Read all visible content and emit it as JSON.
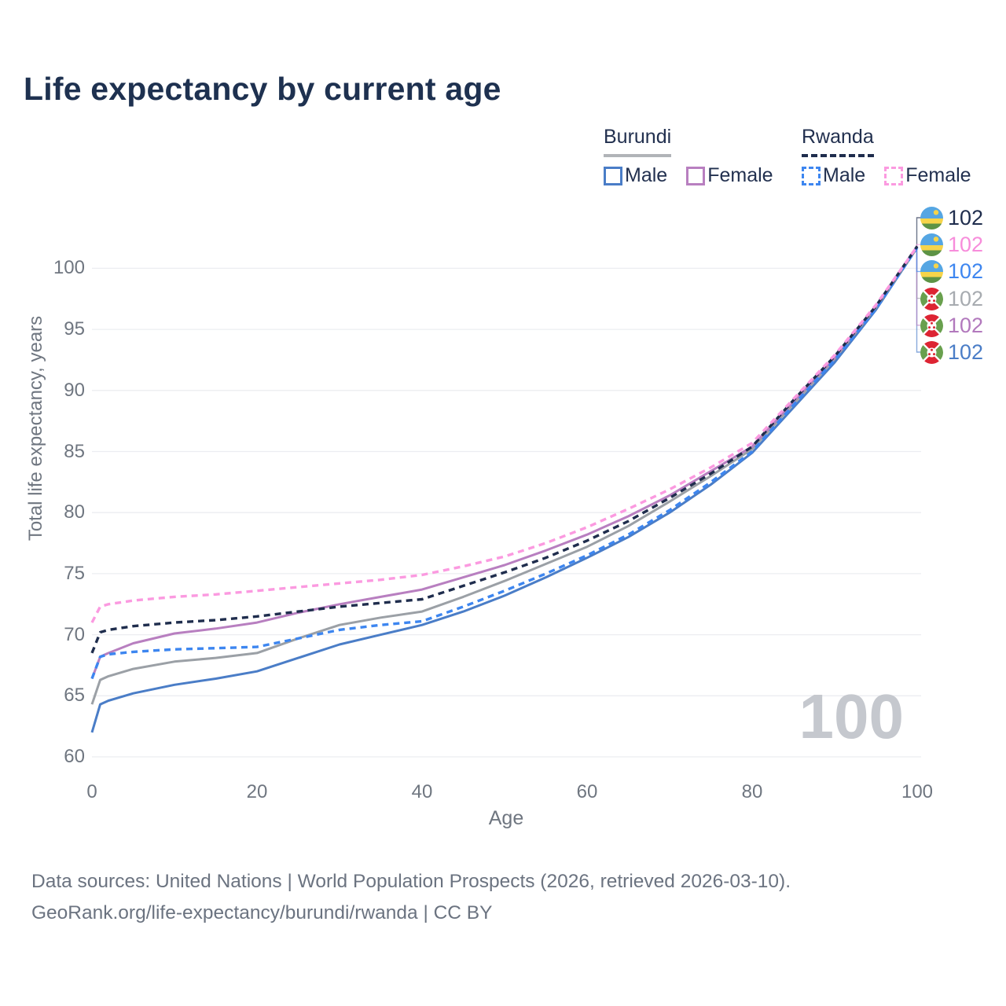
{
  "title": "Life expectancy by current age",
  "legend": {
    "groups": [
      {
        "label": "Burundi",
        "line_style": "solid",
        "underline_color": "#b1b4b8",
        "items": [
          {
            "label": "Male",
            "color": "#4a7dc7",
            "dashed": false
          },
          {
            "label": "Female",
            "color": "#b87fc0",
            "dashed": false
          }
        ]
      },
      {
        "label": "Rwanda",
        "line_style": "dashed",
        "underline_color": "#1f2d4d",
        "items": [
          {
            "label": "Male",
            "color": "#3d86f0",
            "dashed": true
          },
          {
            "label": "Female",
            "color": "#fb9ae0",
            "dashed": true
          }
        ]
      }
    ]
  },
  "chart_data": {
    "type": "line",
    "title": "Life expectancy by current age",
    "xlabel": "Age",
    "ylabel": "Total life expectancy, years",
    "xlim": [
      0,
      100
    ],
    "ylim": [
      60,
      102.5
    ],
    "x_ticks": [
      0,
      20,
      40,
      60,
      80,
      100
    ],
    "y_ticks": [
      60,
      65,
      70,
      75,
      80,
      85,
      90,
      95,
      100
    ],
    "grid": "horizontal",
    "legend_position": "top-right",
    "watermark": "100",
    "x": [
      0,
      1,
      2,
      5,
      10,
      15,
      20,
      25,
      30,
      35,
      40,
      45,
      50,
      55,
      60,
      65,
      70,
      75,
      80,
      85,
      90,
      95,
      100
    ],
    "series": [
      {
        "id": "burundi-male",
        "country": "Burundi",
        "sex": "male",
        "color": "#4a7dc7",
        "dashed": false,
        "flag": "burundi",
        "end_label": "102",
        "end_label_color": "#4a7dc7",
        "label_row": 5,
        "values": [
          62.0,
          64.3,
          64.6,
          65.2,
          65.9,
          66.4,
          67.0,
          68.1,
          69.2,
          70.0,
          70.8,
          71.9,
          73.2,
          74.7,
          76.3,
          78.0,
          80.0,
          82.3,
          84.9,
          88.6,
          92.3,
          96.6,
          101.7
        ]
      },
      {
        "id": "burundi-both-sexes",
        "country": "Burundi",
        "sex": "both",
        "color": "#9ba0a6",
        "dashed": false,
        "flag": "burundi",
        "end_label": "102",
        "end_label_color": "#a7abb0",
        "label_row": 3,
        "values": [
          64.3,
          66.3,
          66.6,
          67.2,
          67.8,
          68.1,
          68.5,
          69.7,
          70.8,
          71.4,
          71.9,
          73.1,
          74.4,
          75.8,
          77.2,
          78.9,
          80.9,
          83.0,
          85.2,
          88.9,
          92.6,
          96.8,
          101.7
        ]
      },
      {
        "id": "burundi-female",
        "country": "Burundi",
        "sex": "female",
        "color": "#b87fc0",
        "dashed": false,
        "flag": "burundi",
        "end_label": "102",
        "end_label_color": "#b279bd",
        "label_row": 4,
        "values": [
          66.4,
          68.2,
          68.5,
          69.3,
          70.1,
          70.5,
          71.0,
          71.8,
          72.5,
          73.1,
          73.7,
          74.7,
          75.7,
          76.9,
          78.2,
          79.7,
          81.4,
          83.4,
          85.4,
          89.1,
          92.7,
          96.9,
          101.8
        ]
      },
      {
        "id": "rwanda-male",
        "country": "Rwanda",
        "sex": "male",
        "color": "#3d86f0",
        "dashed": true,
        "flag": "rwanda",
        "end_label": "102",
        "end_label_color": "#3d86f0",
        "label_row": 2,
        "values": [
          66.4,
          68.2,
          68.4,
          68.6,
          68.8,
          68.9,
          69.0,
          69.7,
          70.4,
          70.8,
          71.1,
          72.3,
          73.6,
          75.0,
          76.5,
          78.2,
          80.2,
          82.5,
          85.0,
          88.8,
          92.5,
          96.7,
          101.7
        ]
      },
      {
        "id": "rwanda-both-sexes",
        "country": "Rwanda",
        "sex": "both",
        "color": "#1f2d4d",
        "dashed": true,
        "flag": "rwanda",
        "end_label": "102",
        "end_label_color": "#1f2d4d",
        "label_row": 0,
        "values": [
          68.5,
          70.2,
          70.4,
          70.7,
          71.0,
          71.2,
          71.5,
          71.9,
          72.3,
          72.6,
          72.9,
          74.0,
          75.1,
          76.3,
          77.7,
          79.3,
          81.2,
          83.2,
          85.4,
          89.2,
          92.8,
          96.9,
          101.8
        ]
      },
      {
        "id": "rwanda-female",
        "country": "Rwanda",
        "sex": "female",
        "color": "#fb9ae0",
        "dashed": true,
        "flag": "rwanda",
        "end_label": "102",
        "end_label_color": "#f78ddb",
        "label_row": 1,
        "values": [
          71.0,
          72.3,
          72.5,
          72.8,
          73.1,
          73.3,
          73.6,
          73.9,
          74.2,
          74.5,
          74.9,
          75.6,
          76.4,
          77.5,
          78.8,
          80.3,
          81.9,
          83.7,
          85.7,
          89.3,
          92.9,
          97.0,
          101.8
        ]
      }
    ]
  },
  "footer": {
    "line1": "Data sources: United Nations | World Population Prospects (2026, retrieved 2026-03-10).",
    "line2": "GeoRank.org/life-expectancy/burundi/rwanda | CC BY"
  }
}
